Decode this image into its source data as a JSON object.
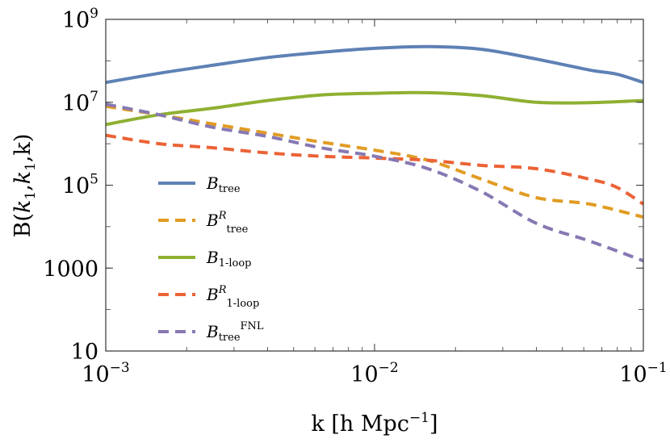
{
  "chart_data": {
    "type": "line",
    "xscale": "log",
    "yscale": "log",
    "xlim": [
      0.001,
      0.1
    ],
    "ylim": [
      10,
      1000000000
    ],
    "xlabel": {
      "base": "k [h Mpc",
      "sup": "−1",
      "tail": "]"
    },
    "ylabel": {
      "a": "B(",
      "k1": "k",
      "sub1": "1",
      "comma1": ",",
      "k2": "k",
      "sub2": "1",
      "rest": ",k)"
    },
    "x_ticks": [
      {
        "value": 0.001,
        "base": "10",
        "exp": "−3"
      },
      {
        "value": 0.01,
        "base": "10",
        "exp": "−2"
      },
      {
        "value": 0.1,
        "base": "10",
        "exp": "−1"
      }
    ],
    "y_ticks": [
      {
        "value": 1000000000,
        "base": "10",
        "exp": "9"
      },
      {
        "value": 10000000,
        "base": "10",
        "exp": "7"
      },
      {
        "value": 100000,
        "base": "10",
        "exp": "5"
      },
      {
        "value": 1000,
        "base": "1000",
        "exp": ""
      },
      {
        "value": 10,
        "base": "10",
        "exp": ""
      }
    ],
    "grid": false,
    "legend_position": "lower-left",
    "series": [
      {
        "name": "B_tree",
        "legend": {
          "main": "B",
          "sub": "tree",
          "sup": "",
          "suptext": ""
        },
        "color": "#5e81b5",
        "dash": false,
        "points": [
          [
            0.001,
            30000000
          ],
          [
            0.00158,
            50000000
          ],
          [
            0.0025,
            78000000
          ],
          [
            0.004,
            120000000
          ],
          [
            0.0063,
            160000000
          ],
          [
            0.01,
            200000000
          ],
          [
            0.0158,
            220000000
          ],
          [
            0.025,
            190000000
          ],
          [
            0.04,
            110000000
          ],
          [
            0.0631,
            60000000
          ],
          [
            0.0794,
            48000000
          ],
          [
            0.1,
            30000000
          ]
        ]
      },
      {
        "name": "B^R_tree",
        "legend": {
          "main": "B",
          "sub": "tree",
          "sup": "R",
          "suptext": ""
        },
        "color": "#e19c24",
        "dash": true,
        "points": [
          [
            0.001,
            8000000
          ],
          [
            0.00158,
            5000000
          ],
          [
            0.0025,
            3000000
          ],
          [
            0.004,
            1800000
          ],
          [
            0.0063,
            1100000
          ],
          [
            0.01,
            700000
          ],
          [
            0.0158,
            400000
          ],
          [
            0.025,
            140000
          ],
          [
            0.04,
            50000
          ],
          [
            0.0631,
            35000
          ],
          [
            0.1,
            17000
          ]
        ]
      },
      {
        "name": "B_1-loop",
        "legend": {
          "main": "B",
          "sub": "1-loop",
          "sup": "",
          "suptext": ""
        },
        "color": "#8fb032",
        "dash": false,
        "points": [
          [
            0.001,
            2900000
          ],
          [
            0.00158,
            5000000
          ],
          [
            0.0025,
            7200000
          ],
          [
            0.004,
            11000000
          ],
          [
            0.0063,
            15000000
          ],
          [
            0.01,
            16500000
          ],
          [
            0.0158,
            17000000
          ],
          [
            0.025,
            14500000
          ],
          [
            0.04,
            10000000
          ],
          [
            0.0631,
            9800000
          ],
          [
            0.1,
            11000000
          ]
        ]
      },
      {
        "name": "B^R_1-loop",
        "legend": {
          "main": "B",
          "sub": "1-loop",
          "sup": "R",
          "suptext": ""
        },
        "color": "#eb6235",
        "dash": true,
        "points": [
          [
            0.001,
            1600000
          ],
          [
            0.00158,
            1000000
          ],
          [
            0.0025,
            800000
          ],
          [
            0.004,
            600000
          ],
          [
            0.0063,
            500000
          ],
          [
            0.01,
            450000
          ],
          [
            0.0158,
            400000
          ],
          [
            0.025,
            300000
          ],
          [
            0.04,
            250000
          ],
          [
            0.0631,
            140000
          ],
          [
            0.0794,
            90000
          ],
          [
            0.1,
            35000
          ]
        ]
      },
      {
        "name": "B_tree^FNL",
        "legend": {
          "main": "B",
          "sub": "tree",
          "sup": "",
          "suptext": "FNL"
        },
        "color": "#8778b3",
        "dash": true,
        "points": [
          [
            0.001,
            9000000
          ],
          [
            0.00158,
            5000000
          ],
          [
            0.0025,
            2500000
          ],
          [
            0.004,
            1500000
          ],
          [
            0.0063,
            800000
          ],
          [
            0.01,
            500000
          ],
          [
            0.0158,
            250000
          ],
          [
            0.025,
            70000
          ],
          [
            0.04,
            12000
          ],
          [
            0.0631,
            4500
          ],
          [
            0.1,
            1500
          ]
        ]
      }
    ]
  }
}
